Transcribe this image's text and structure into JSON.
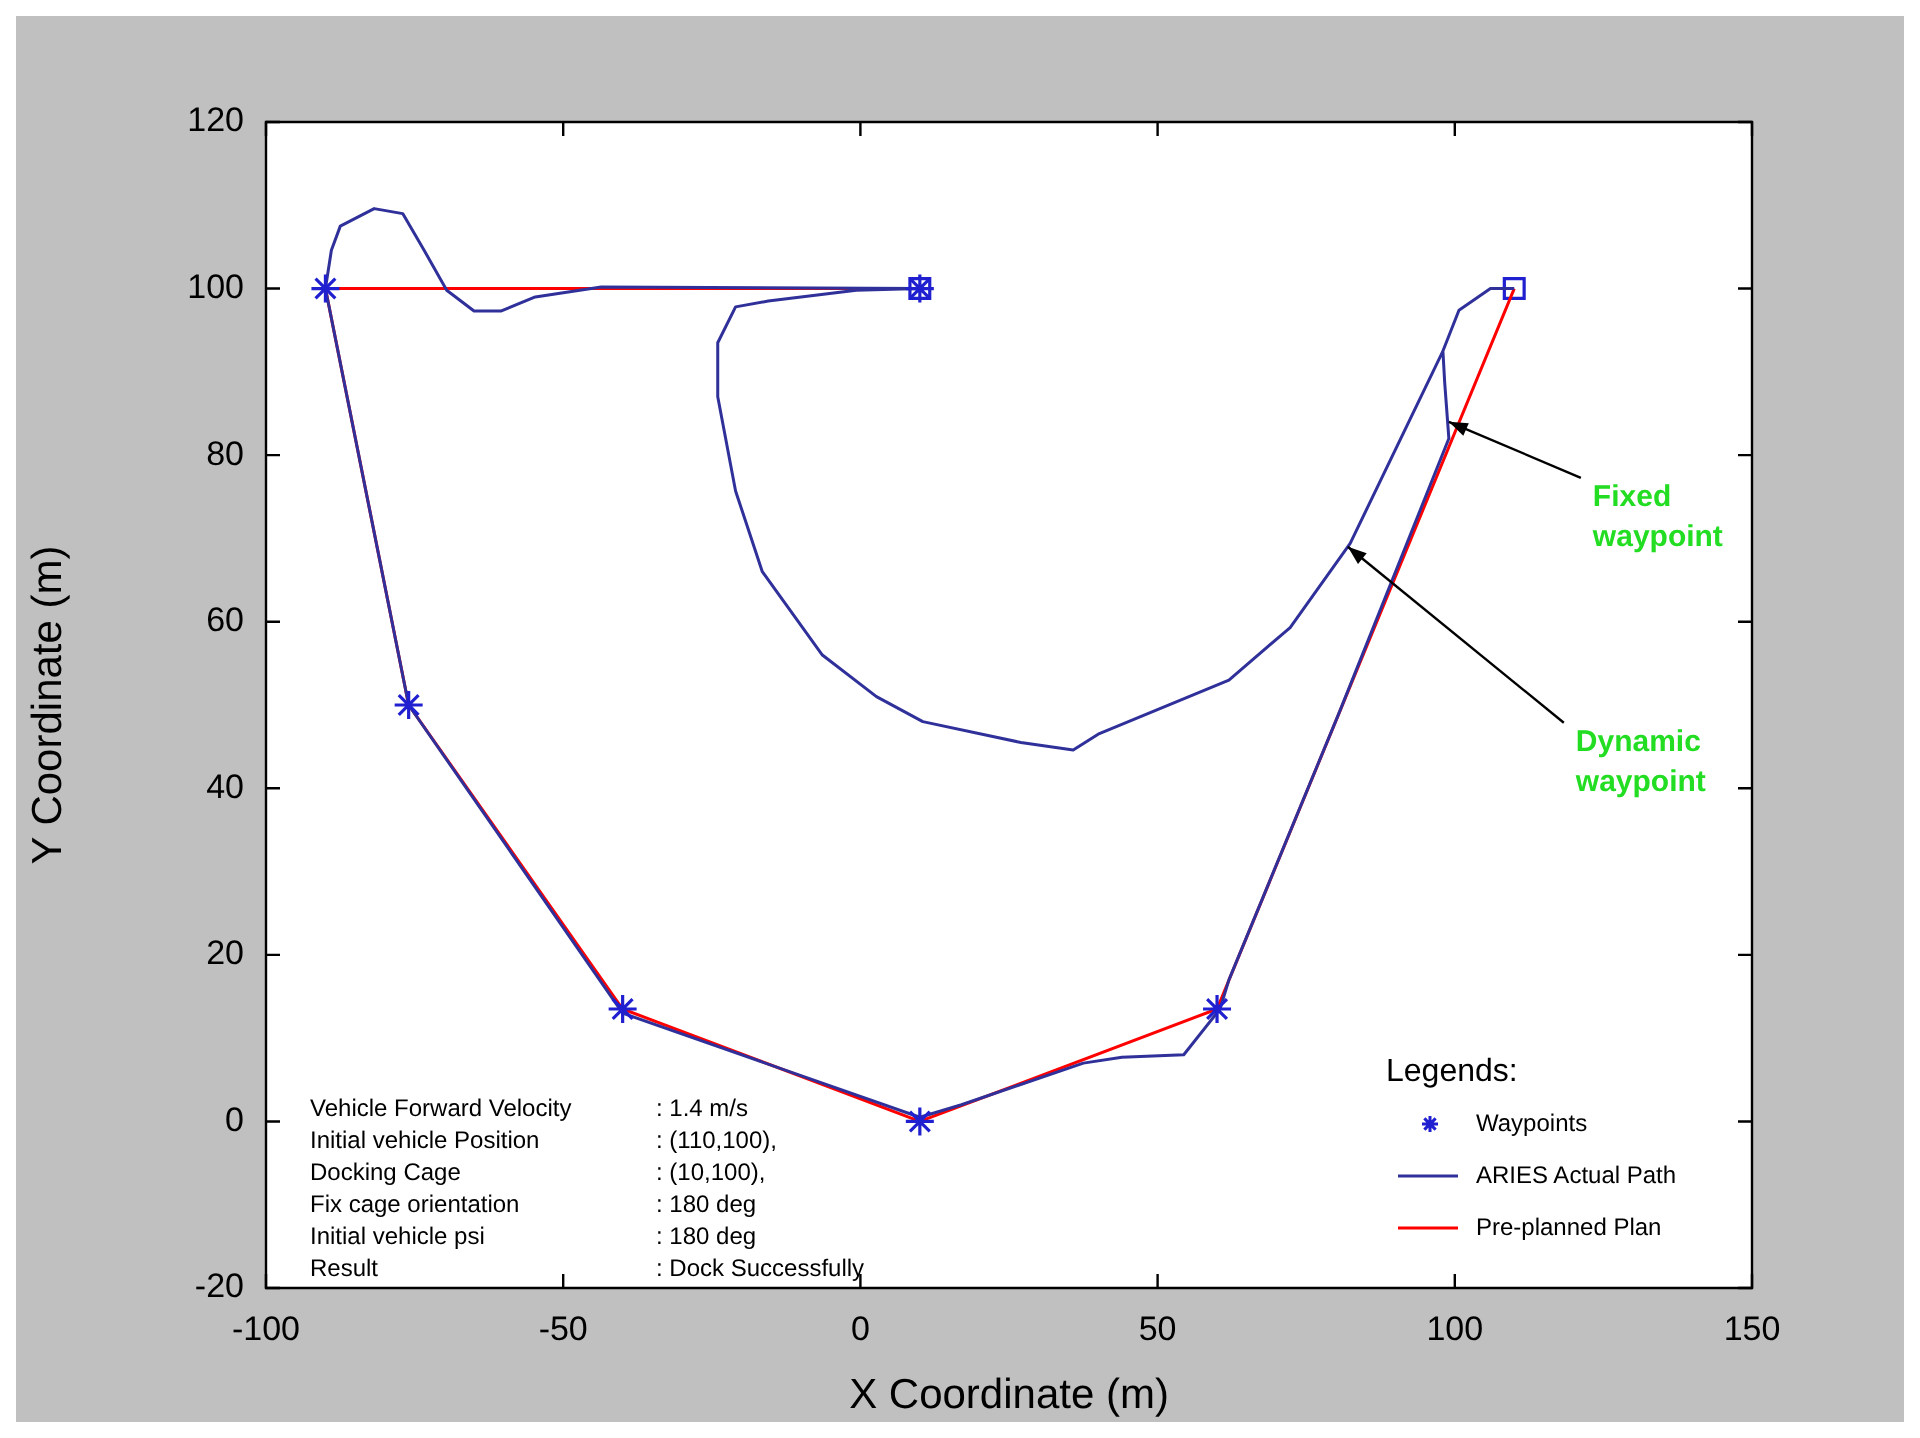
{
  "chart_data": {
    "type": "line",
    "xlabel": "X Coordinate (m)",
    "ylabel": "Y Coordinate (m)",
    "legend_title": "Legends:",
    "legend": "bottom right",
    "grid": false,
    "xlim": [
      -100,
      150
    ],
    "xticks": [
      -100,
      -50,
      0,
      50,
      100,
      150
    ],
    "ylim": [
      -20,
      120
    ],
    "yticks": [
      -20,
      0,
      20,
      40,
      60,
      80,
      100,
      120
    ],
    "series": [
      {
        "name": "Waypoints",
        "type": "scatter",
        "marker": "cross",
        "color": "#2020d0",
        "x": [
          -90,
          -76,
          -40,
          10,
          60,
          10
        ],
        "values": [
          100,
          50,
          13.5,
          0,
          13.5,
          100
        ]
      },
      {
        "name": "ARIES Actual Path",
        "color": "#30309a",
        "x": [
          110,
          106,
          100.7,
          98,
          98.3,
          99,
          80.5,
          62,
          60.5,
          54.4,
          44,
          37.5,
          17,
          10,
          -40,
          -76,
          -90,
          -89,
          -87.5,
          -81.8,
          -77,
          -73.4,
          -69.6,
          -65,
          -60.5,
          -54.7,
          -43.6,
          10,
          null,
          110,
          106,
          100.7,
          98,
          82.4,
          72.3,
          62,
          40,
          35.8,
          27,
          10.5,
          2.7,
          -6.4,
          -16.5,
          -21,
          -24,
          -24,
          -21,
          -15.5,
          -0.7,
          10
        ],
        "values": [
          100,
          100,
          97.4,
          92.5,
          88.7,
          82,
          49,
          17,
          13.5,
          8,
          7.7,
          7,
          2,
          0.5,
          13,
          50,
          100,
          104.6,
          107.5,
          109.6,
          109,
          104.6,
          99.8,
          97.3,
          97.3,
          99,
          100.2,
          100,
          null,
          100,
          100,
          97.4,
          92.5,
          69.4,
          59.3,
          53,
          46.5,
          44.6,
          45.5,
          48,
          51,
          56,
          66,
          75.7,
          87,
          93.5,
          97.8,
          98.5,
          99.8,
          100
        ]
      },
      {
        "name": "Pre-planned Plan",
        "color": "#ff0000",
        "x": [
          110,
          60,
          10,
          -40,
          -76,
          -90,
          10
        ],
        "values": [
          100,
          13.5,
          0,
          13.5,
          50,
          100,
          100
        ]
      },
      {
        "type": "scatter",
        "marker": "square",
        "color": "#2020d0",
        "x": [
          110,
          10
        ],
        "values": [
          100,
          100
        ]
      }
    ],
    "annotations": [
      "Vehicle Forward Velocity : 1.4 m/s",
      "Initial vehicle Position : (110,100),",
      "Docking Cage : (10,100),",
      "Fix cage orientation : 180 deg",
      "Initial vehicle psi : 180 deg",
      "Result : Dock Successfully",
      {
        "text": "Fixed waypoint",
        "x": 99,
        "y": 84
      },
      {
        "text": "Dynamic waypoint",
        "x": 82,
        "y": 69
      }
    ]
  }
}
